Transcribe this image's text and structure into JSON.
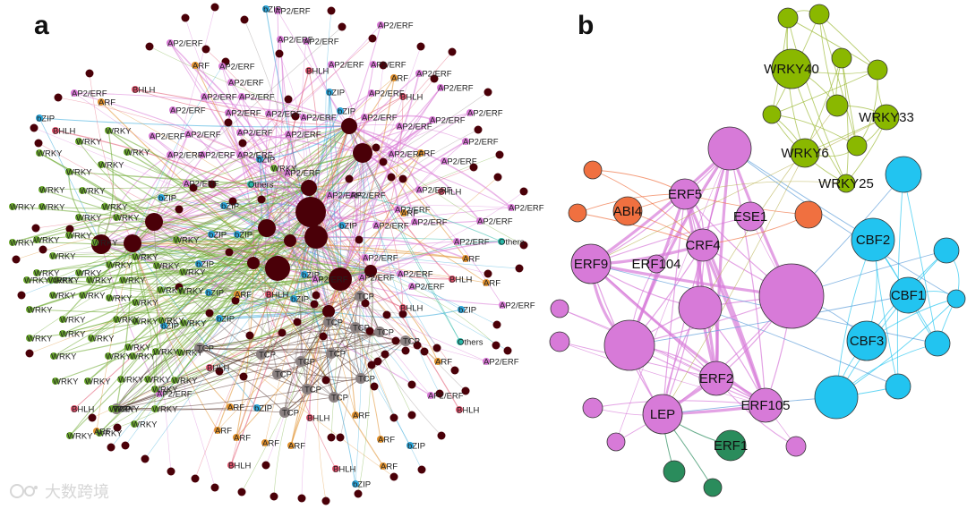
{
  "panels": [
    {
      "letter": "a"
    },
    {
      "letter": "b"
    }
  ],
  "colors": {
    "hub": "#4a0008",
    "wrky": "#6aa82c",
    "ap2": "#d878d6",
    "bzip": "#2aa4d8",
    "arf": "#e0902c",
    "bhlh": "#e0506a",
    "tcp": "#8a8080",
    "others": "#2ab8a8",
    "b_erf": "#d77ad8",
    "b_abi": "#f07040",
    "b_wrky": "#8ab800",
    "b_cbf": "#22c4f0",
    "b_erf1": "#2a8c5c"
  },
  "panel_a_labels": [
    {
      "t": "bZIP",
      "c": "bzip"
    },
    {
      "t": "AP2/ERF",
      "c": "ap2"
    },
    {
      "t": "AP2/ERF",
      "c": "ap2"
    },
    {
      "t": "AP2/ERF",
      "c": "ap2"
    },
    {
      "t": "AP2/ERF",
      "c": "ap2"
    },
    {
      "t": "AP2/ERF",
      "c": "ap2"
    },
    {
      "t": "AP2/ERF",
      "c": "ap2"
    },
    {
      "t": "ARF",
      "c": "arf"
    },
    {
      "t": "AP2/ERF",
      "c": "ap2"
    },
    {
      "t": "BHLH",
      "c": "bhlh"
    },
    {
      "t": "AP2/ERF",
      "c": "ap2"
    },
    {
      "t": "AP2/ERF",
      "c": "ap2"
    },
    {
      "t": "ARF",
      "c": "arf"
    },
    {
      "t": "BHLH",
      "c": "bhlh"
    },
    {
      "t": "AP2/ERF",
      "c": "ap2"
    },
    {
      "t": "AP2/ERF",
      "c": "ap2"
    },
    {
      "t": "AP2/ERF",
      "c": "ap2"
    },
    {
      "t": "bZIP",
      "c": "bzip"
    },
    {
      "t": "AP2/ERF",
      "c": "ap2"
    },
    {
      "t": "BHLH",
      "c": "bhlh"
    },
    {
      "t": "AP2/ERF",
      "c": "ap2"
    },
    {
      "t": "AP2/ERF",
      "c": "ap2"
    },
    {
      "t": "AP2/ERF",
      "c": "ap2"
    },
    {
      "t": "AP2/ERF",
      "c": "ap2"
    },
    {
      "t": "bZIP",
      "c": "bzip"
    },
    {
      "t": "AP2/ERF",
      "c": "ap2"
    },
    {
      "t": "AP2/ERF",
      "c": "ap2"
    },
    {
      "t": "AP2/ERF",
      "c": "ap2"
    },
    {
      "t": "AP2/ERF",
      "c": "ap2"
    },
    {
      "t": "AP2/ERF",
      "c": "ap2"
    },
    {
      "t": "AP2/ERF",
      "c": "ap2"
    },
    {
      "t": "AP2/ERF",
      "c": "ap2"
    },
    {
      "t": "AP2/ERF",
      "c": "ap2"
    },
    {
      "t": "AP2/ERF",
      "c": "ap2"
    },
    {
      "t": "AP2/ERF",
      "c": "ap2"
    },
    {
      "t": "AP2/ERF",
      "c": "ap2"
    },
    {
      "t": "AP2/ERF",
      "c": "ap2"
    },
    {
      "t": "AP2/ERF",
      "c": "ap2"
    },
    {
      "t": "AP2/ERF",
      "c": "ap2"
    },
    {
      "t": "AP2/ERF",
      "c": "ap2"
    },
    {
      "t": "ARF",
      "c": "arf"
    },
    {
      "t": "AP2/ERF",
      "c": "ap2"
    },
    {
      "t": "AP2/ERF",
      "c": "ap2"
    },
    {
      "t": "AP2/ERF",
      "c": "ap2"
    },
    {
      "t": "bZIP",
      "c": "bzip"
    },
    {
      "t": "BHLH",
      "c": "bhlh"
    },
    {
      "t": "AP2/ERF",
      "c": "ap2"
    },
    {
      "t": "AP2/ERF",
      "c": "ap2"
    },
    {
      "t": "AP2/ERF",
      "c": "ap2"
    },
    {
      "t": "AP2/ERF",
      "c": "ap2"
    },
    {
      "t": "bZIP",
      "c": "bzip"
    },
    {
      "t": "Others",
      "c": "others"
    },
    {
      "t": "bZIP",
      "c": "bzip"
    },
    {
      "t": "AP2/ERF",
      "c": "ap2"
    },
    {
      "t": "bZIP",
      "c": "bzip"
    },
    {
      "t": "bZIP",
      "c": "bzip"
    },
    {
      "t": "AP2/ERF",
      "c": "ap2"
    },
    {
      "t": "ARF",
      "c": "arf"
    },
    {
      "t": "AP2/ERF",
      "c": "ap2"
    },
    {
      "t": "bZIP",
      "c": "bzip"
    },
    {
      "t": "AP2/ERF",
      "c": "ap2"
    },
    {
      "t": "AP2/ERF",
      "c": "ap2"
    },
    {
      "t": "AP2/ERF",
      "c": "ap2"
    },
    {
      "t": "BHLH",
      "c": "bhlh"
    },
    {
      "t": "ARF",
      "c": "arf"
    },
    {
      "t": "Others",
      "c": "others"
    },
    {
      "t": "bZIP",
      "c": "bzip"
    },
    {
      "t": "WRKY",
      "c": "wrky"
    },
    {
      "t": "bZIP",
      "c": "bzip"
    },
    {
      "t": "bZIP",
      "c": "bzip"
    },
    {
      "t": "AP2/ERF",
      "c": "ap2"
    },
    {
      "t": "ARF",
      "c": "arf"
    },
    {
      "t": "bZIP",
      "c": "bzip"
    },
    {
      "t": "AP2/ERF",
      "c": "ap2"
    },
    {
      "t": "BHLH",
      "c": "bhlh"
    },
    {
      "t": "ARF",
      "c": "arf"
    },
    {
      "t": "BHLH",
      "c": "bhlh"
    },
    {
      "t": "bZIP",
      "c": "bzip"
    },
    {
      "t": "TCP",
      "c": "tcp"
    },
    {
      "t": "AP2/ERF",
      "c": "ap2"
    },
    {
      "t": "bZIP",
      "c": "bzip"
    },
    {
      "t": "bZIP",
      "c": "bzip"
    },
    {
      "t": "AP2/ERF",
      "c": "ap2"
    },
    {
      "t": "TCP",
      "c": "tcp"
    },
    {
      "t": "TCP",
      "c": "tcp"
    },
    {
      "t": "TCP",
      "c": "tcp"
    },
    {
      "t": "TCP",
      "c": "tcp"
    },
    {
      "t": "Others",
      "c": "others"
    },
    {
      "t": "TCP",
      "c": "tcp"
    },
    {
      "t": "TCP",
      "c": "tcp"
    },
    {
      "t": "TCP",
      "c": "tcp"
    },
    {
      "t": "TCP",
      "c": "tcp"
    },
    {
      "t": "TCP",
      "c": "tcp"
    },
    {
      "t": "ARF",
      "c": "arf"
    },
    {
      "t": "AP2/ERF",
      "c": "ap2"
    },
    {
      "t": "BHLH",
      "c": "bhlh"
    },
    {
      "t": "TCP",
      "c": "tcp"
    },
    {
      "t": "TCP",
      "c": "tcp"
    },
    {
      "t": "TCP",
      "c": "tcp"
    },
    {
      "t": "TCP",
      "c": "tcp"
    },
    {
      "t": "BHLH",
      "c": "bhlh"
    },
    {
      "t": "ARF",
      "c": "arf"
    },
    {
      "t": "AP2/ERF",
      "c": "ap2"
    },
    {
      "t": "ARF",
      "c": "arf"
    },
    {
      "t": "bZIP",
      "c": "bzip"
    },
    {
      "t": "AP2/ERF",
      "c": "ap2"
    },
    {
      "t": "TCP",
      "c": "tcp"
    },
    {
      "t": "BHLH",
      "c": "bhlh"
    },
    {
      "t": "ARF",
      "c": "arf"
    },
    {
      "t": "BHLH",
      "c": "bhlh"
    },
    {
      "t": "ARF",
      "c": "arf"
    },
    {
      "t": "ARF",
      "c": "arf"
    },
    {
      "t": "ARF",
      "c": "arf"
    },
    {
      "t": "ARF",
      "c": "arf"
    },
    {
      "t": "bZIP",
      "c": "bzip"
    },
    {
      "t": "ARF",
      "c": "arf"
    },
    {
      "t": "BHLH",
      "c": "bhlh"
    },
    {
      "t": "ARF",
      "c": "arf"
    },
    {
      "t": "BHLH",
      "c": "bhlh"
    },
    {
      "t": "bZIP",
      "c": "bzip"
    },
    {
      "t": "bZIP",
      "c": "bzip"
    },
    {
      "t": "AP2/ERF",
      "c": "ap2"
    },
    {
      "t": "ARF",
      "c": "arf"
    },
    {
      "t": "BHLH",
      "c": "bhlh"
    },
    {
      "t": "WRKY",
      "c": "wrky"
    },
    {
      "t": "WRKY",
      "c": "wrky"
    },
    {
      "t": "WRKY",
      "c": "wrky"
    },
    {
      "t": "WRKY",
      "c": "wrky"
    },
    {
      "t": "WRKY",
      "c": "wrky"
    },
    {
      "t": "WRKY",
      "c": "wrky"
    },
    {
      "t": "WRKY",
      "c": "wrky"
    },
    {
      "t": "WRKY",
      "c": "wrky"
    },
    {
      "t": "WRKY",
      "c": "wrky"
    },
    {
      "t": "WRKY",
      "c": "wrky"
    },
    {
      "t": "WRKY",
      "c": "wrky"
    },
    {
      "t": "WRKY",
      "c": "wrky"
    },
    {
      "t": "WRKY",
      "c": "wrky"
    },
    {
      "t": "WRKY",
      "c": "wrky"
    },
    {
      "t": "WRKY",
      "c": "wrky"
    },
    {
      "t": "WRKY",
      "c": "wrky"
    },
    {
      "t": "WRKY",
      "c": "wrky"
    },
    {
      "t": "WRKY",
      "c": "wrky"
    },
    {
      "t": "WRKY",
      "c": "wrky"
    },
    {
      "t": "WRKY",
      "c": "wrky"
    },
    {
      "t": "WRKY",
      "c": "wrky"
    },
    {
      "t": "WRKY",
      "c": "wrky"
    },
    {
      "t": "WRKY",
      "c": "wrky"
    },
    {
      "t": "WRKY",
      "c": "wrky"
    },
    {
      "t": "WRKY",
      "c": "wrky"
    },
    {
      "t": "WRKY",
      "c": "wrky"
    },
    {
      "t": "WRKY",
      "c": "wrky"
    },
    {
      "t": "WRKY",
      "c": "wrky"
    },
    {
      "t": "WRKY",
      "c": "wrky"
    },
    {
      "t": "WRKY",
      "c": "wrky"
    },
    {
      "t": "WRKY",
      "c": "wrky"
    },
    {
      "t": "WRKY",
      "c": "wrky"
    },
    {
      "t": "WRKY",
      "c": "wrky"
    },
    {
      "t": "WRKY",
      "c": "wrky"
    },
    {
      "t": "WRKY",
      "c": "wrky"
    },
    {
      "t": "WRKY",
      "c": "wrky"
    },
    {
      "t": "WRKY",
      "c": "wrky"
    },
    {
      "t": "WRKY",
      "c": "wrky"
    },
    {
      "t": "WRKY",
      "c": "wrky"
    },
    {
      "t": "WRKY",
      "c": "wrky"
    },
    {
      "t": "WRKY",
      "c": "wrky"
    },
    {
      "t": "WRKY",
      "c": "wrky"
    },
    {
      "t": "WRKY",
      "c": "wrky"
    },
    {
      "t": "WRKY",
      "c": "wrky"
    },
    {
      "t": "WRKY",
      "c": "wrky"
    },
    {
      "t": "WRKY",
      "c": "wrky"
    },
    {
      "t": "WRKY",
      "c": "wrky"
    },
    {
      "t": "WRKY",
      "c": "wrky"
    },
    {
      "t": "WRKY",
      "c": "wrky"
    },
    {
      "t": "WRKY",
      "c": "wrky"
    },
    {
      "t": "WRKY",
      "c": "wrky"
    },
    {
      "t": "WRKY",
      "c": "wrky"
    },
    {
      "t": "WRKY",
      "c": "wrky"
    },
    {
      "t": "WRKY",
      "c": "wrky"
    },
    {
      "t": "WRKY",
      "c": "wrky"
    },
    {
      "t": "WRKY",
      "c": "wrky"
    },
    {
      "t": "WRKY",
      "c": "wrky"
    },
    {
      "t": "WRKY",
      "c": "wrky"
    },
    {
      "t": "WRKY",
      "c": "wrky"
    },
    {
      "t": "WRKY",
      "c": "wrky"
    },
    {
      "t": "WRKY",
      "c": "wrky"
    },
    {
      "t": "WRKY",
      "c": "wrky"
    },
    {
      "t": "WRKY",
      "c": "wrky"
    },
    {
      "t": "WRKY",
      "c": "wrky"
    },
    {
      "t": "WRKY",
      "c": "wrky"
    },
    {
      "t": "WRKY",
      "c": "wrky"
    },
    {
      "t": "WRKY",
      "c": "wrky"
    },
    {
      "t": "WRKY",
      "c": "wrky"
    },
    {
      "t": "WRKY",
      "c": "wrky"
    },
    {
      "t": "WRKY",
      "c": "wrky"
    },
    {
      "t": "WRKY",
      "c": "wrky"
    },
    {
      "t": "bZIP",
      "c": "bzip"
    },
    {
      "t": "AP2/ERF",
      "c": "ap2"
    },
    {
      "t": "ARF",
      "c": "arf"
    },
    {
      "t": "AP2/ERF",
      "c": "ap2"
    },
    {
      "t": "AP2/ERF",
      "c": "ap2"
    },
    {
      "t": "AP2/ERF",
      "c": "ap2"
    },
    {
      "t": "AP2/ERF",
      "c": "ap2"
    },
    {
      "t": "AP2/ERF",
      "c": "ap2"
    },
    {
      "t": "AP2/ERF",
      "c": "ap2"
    },
    {
      "t": "AP2/ERF",
      "c": "ap2"
    },
    {
      "t": "AP2/ERF",
      "c": "ap2"
    },
    {
      "t": "AP2/ERF",
      "c": "ap2"
    },
    {
      "t": "AP2/ERF",
      "c": "ap2"
    },
    {
      "t": "AP2/ERF",
      "c": "ap2"
    },
    {
      "t": "AP2/ERF",
      "c": "ap2"
    },
    {
      "t": "AP2/ERF",
      "c": "ap2"
    },
    {
      "t": "AP2/ERF",
      "c": "ap2"
    },
    {
      "t": "AP2/ERF",
      "c": "ap2"
    },
    {
      "t": "AP2/ERF",
      "c": "ap2"
    },
    {
      "t": "bZIP",
      "c": "bzip"
    },
    {
      "t": "AP2/ERF",
      "c": "ap2"
    }
  ],
  "panel_b_nodes": [
    {
      "label": "WRKY40",
      "c": "b_wrky"
    },
    {
      "label": "WRKY33",
      "c": "b_wrky"
    },
    {
      "label": "WRKY6",
      "c": "b_wrky"
    },
    {
      "label": "WRKY25",
      "c": "b_wrky"
    },
    {
      "label": "ABI4",
      "c": "b_abi"
    },
    {
      "label": "ERF5",
      "c": "b_erf"
    },
    {
      "label": "ESE1",
      "c": "b_erf"
    },
    {
      "label": "CRF4",
      "c": "b_erf"
    },
    {
      "label": "ERF9",
      "c": "b_erf"
    },
    {
      "label": "ERF104",
      "c": "b_erf"
    },
    {
      "label": "CBF2",
      "c": "b_cbf"
    },
    {
      "label": "CBF1",
      "c": "b_cbf"
    },
    {
      "label": "CBF3",
      "c": "b_cbf"
    },
    {
      "label": "ERF2",
      "c": "b_erf"
    },
    {
      "label": "ERF105",
      "c": "b_erf"
    },
    {
      "label": "LEP",
      "c": "b_erf"
    },
    {
      "label": "ERF1",
      "c": "b_erf1"
    }
  ],
  "watermark": {
    "text": "大数跨境"
  }
}
